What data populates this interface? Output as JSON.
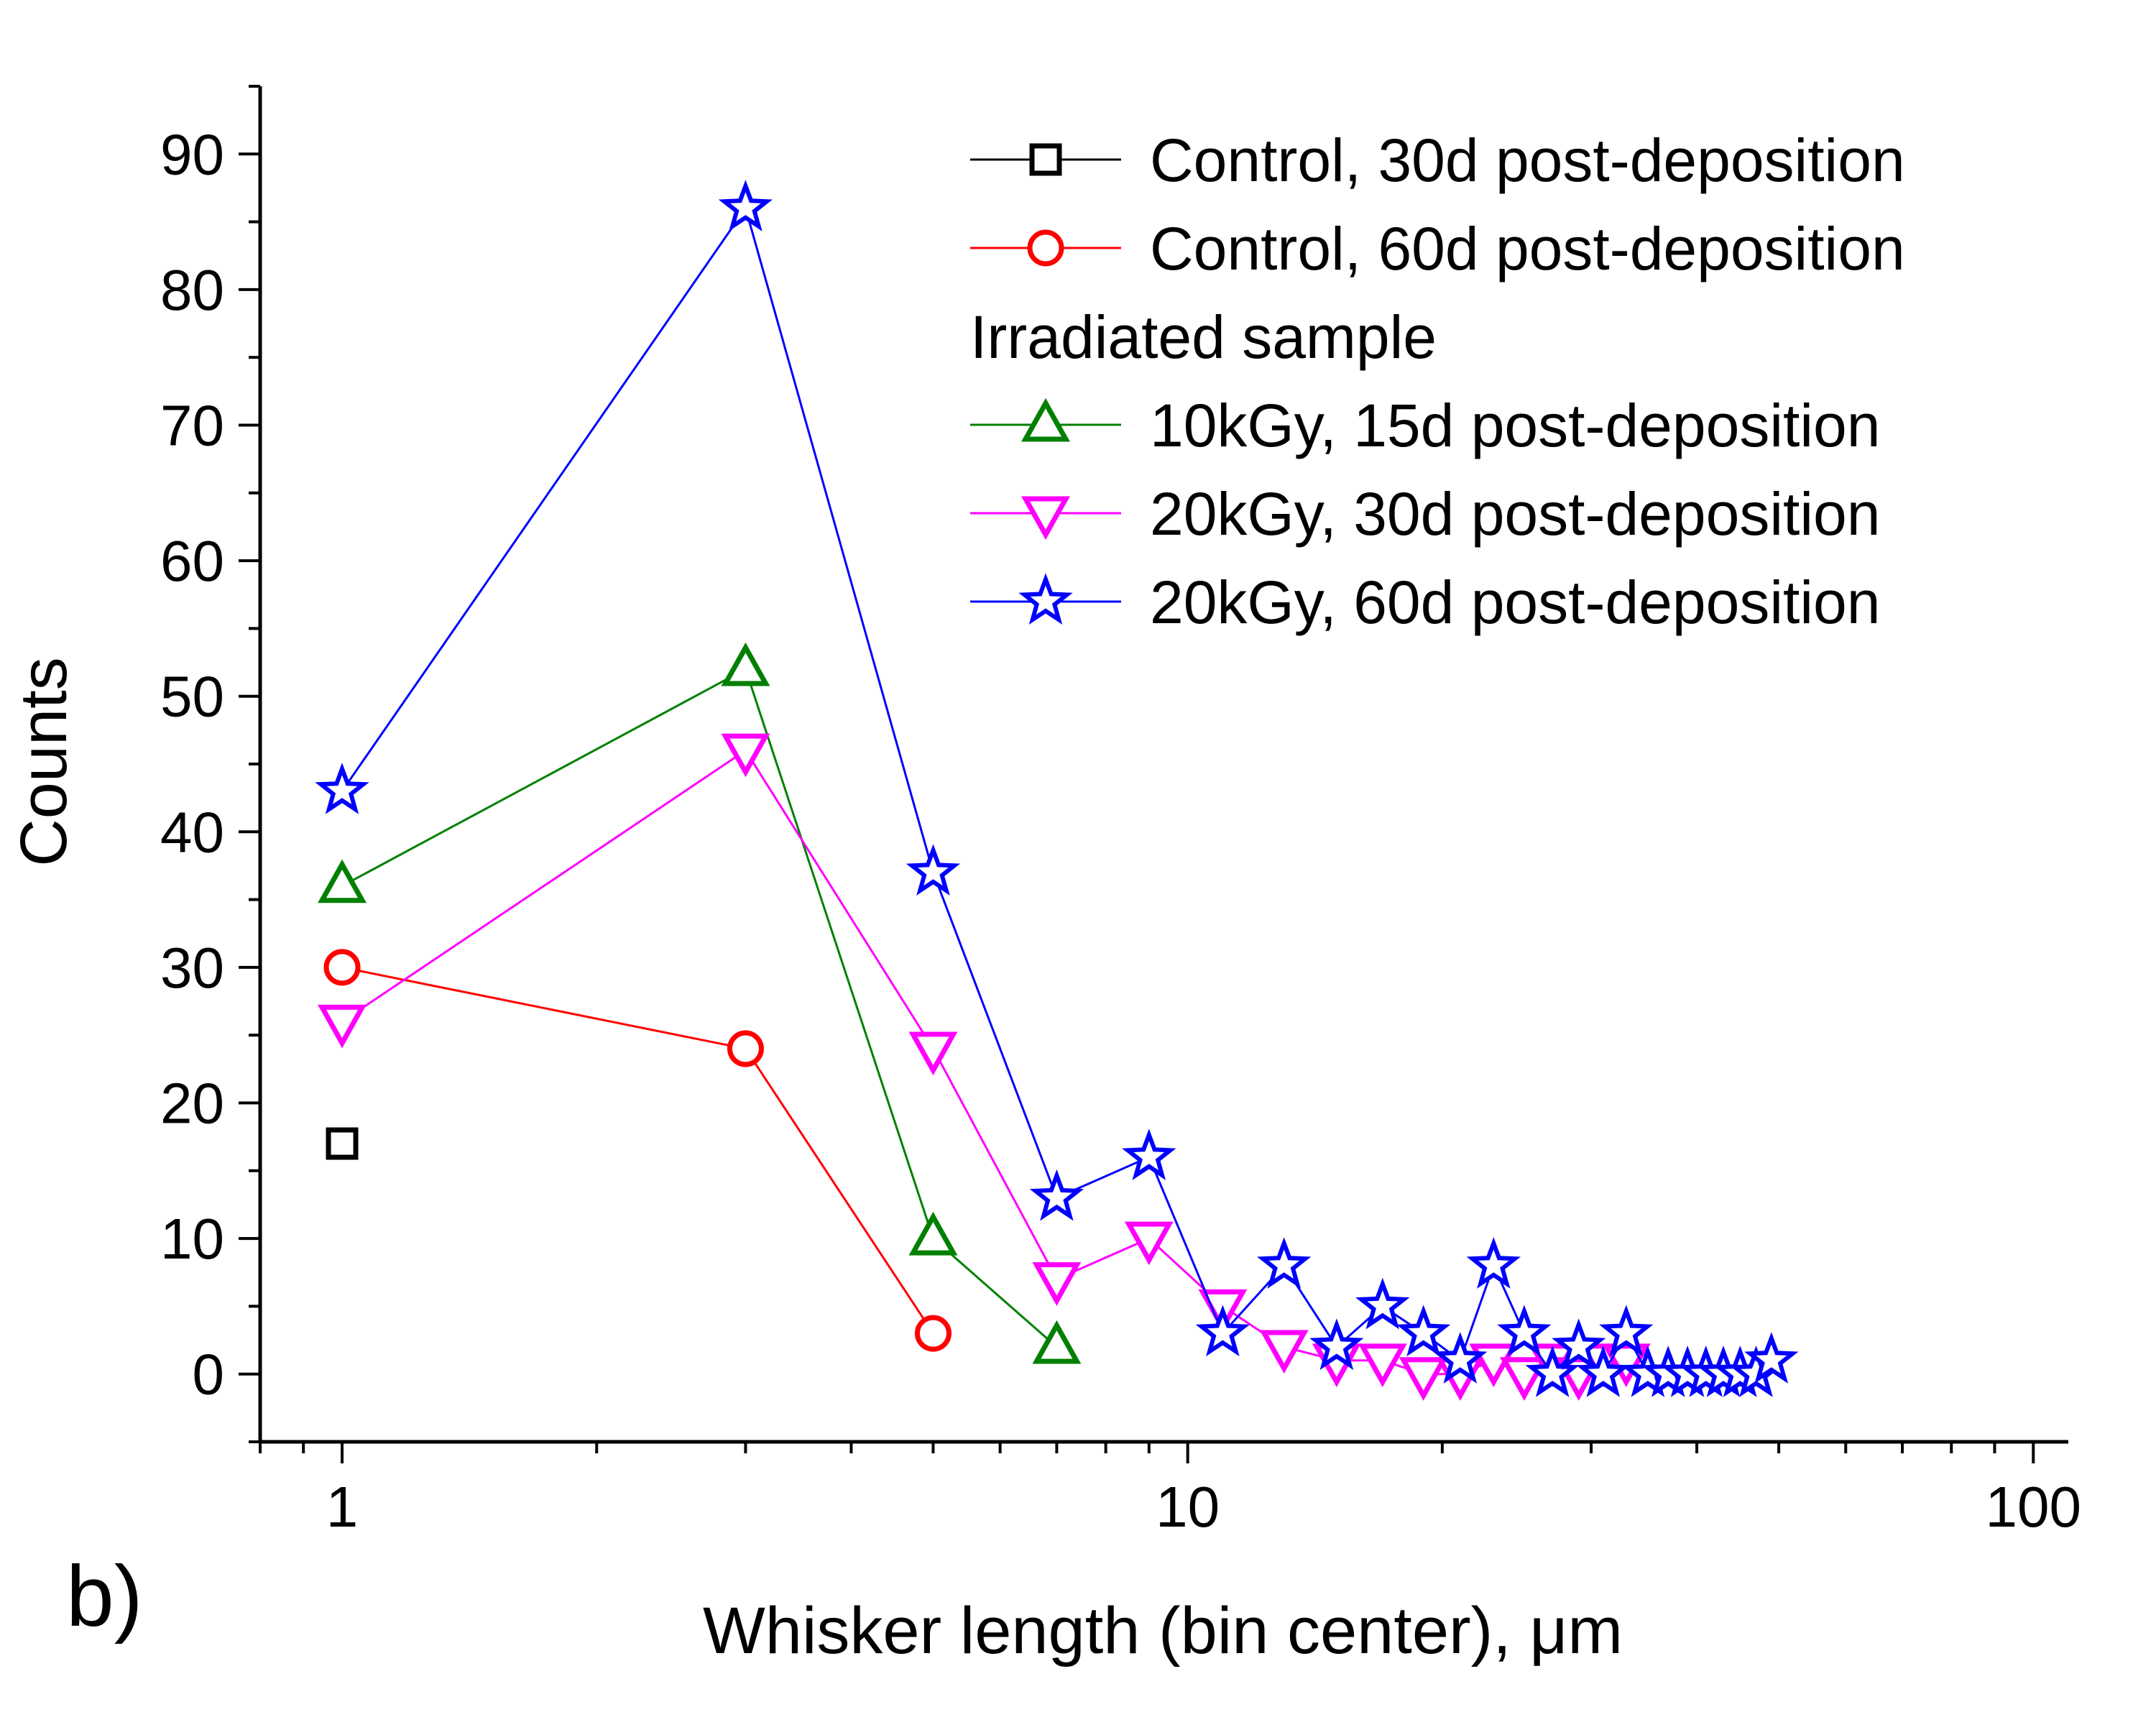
{
  "chart_data": {
    "type": "line",
    "panel_label": "b)",
    "xlabel": "Whisker length (bin center), μm",
    "ylabel": "Counts",
    "x_scale": "log",
    "xlim": [
      0.8,
      110
    ],
    "ylim": [
      -5,
      95
    ],
    "x_ticks": [
      1,
      10,
      100
    ],
    "x_tick_labels": [
      "1",
      "10",
      "100"
    ],
    "y_ticks": [
      0,
      10,
      20,
      30,
      40,
      50,
      60,
      70,
      80,
      90
    ],
    "y_tick_labels": [
      "0",
      "10",
      "20",
      "30",
      "40",
      "50",
      "60",
      "70",
      "80",
      "90"
    ],
    "legend_position": "top-right",
    "legend_group_header": "Irradiated sample",
    "series": [
      {
        "name": "Control, 30d post-deposition",
        "color": "#000000",
        "marker": "square",
        "x": [
          1
        ],
        "y": [
          17
        ]
      },
      {
        "name": "Control, 60d post-deposition",
        "color": "#ff0000",
        "marker": "circle",
        "x": [
          1,
          3,
          5
        ],
        "y": [
          30,
          24,
          3
        ]
      },
      {
        "name": "10kGy, 15d post-deposition",
        "color": "#008000",
        "marker": "triangle-up",
        "x": [
          1,
          3,
          5,
          7
        ],
        "y": [
          36,
          52,
          10,
          2
        ]
      },
      {
        "name": "20kGy, 30d post-deposition",
        "color": "#ff00ff",
        "marker": "triangle-down",
        "x": [
          1,
          3,
          5,
          7,
          9,
          11,
          13,
          15,
          17,
          19,
          21,
          23,
          25,
          27,
          29,
          31,
          33
        ],
        "y": [
          26,
          46,
          24,
          7,
          10,
          5,
          2,
          1,
          1,
          0,
          0,
          1,
          0,
          1,
          0,
          1,
          1
        ]
      },
      {
        "name": "20kGy, 60d post-deposition",
        "color": "#0000ff",
        "marker": "star",
        "x": [
          1,
          3,
          5,
          7,
          9,
          11,
          13,
          15,
          17,
          19,
          21,
          23,
          25,
          27,
          29,
          31,
          33,
          35,
          37,
          39,
          41,
          43,
          45,
          47,
          49
        ],
        "y": [
          43,
          86,
          37,
          13,
          16,
          3,
          8,
          2,
          5,
          3,
          1,
          8,
          3,
          0,
          2,
          0,
          3,
          0,
          0,
          0,
          0,
          0,
          0,
          0,
          1
        ]
      }
    ]
  }
}
